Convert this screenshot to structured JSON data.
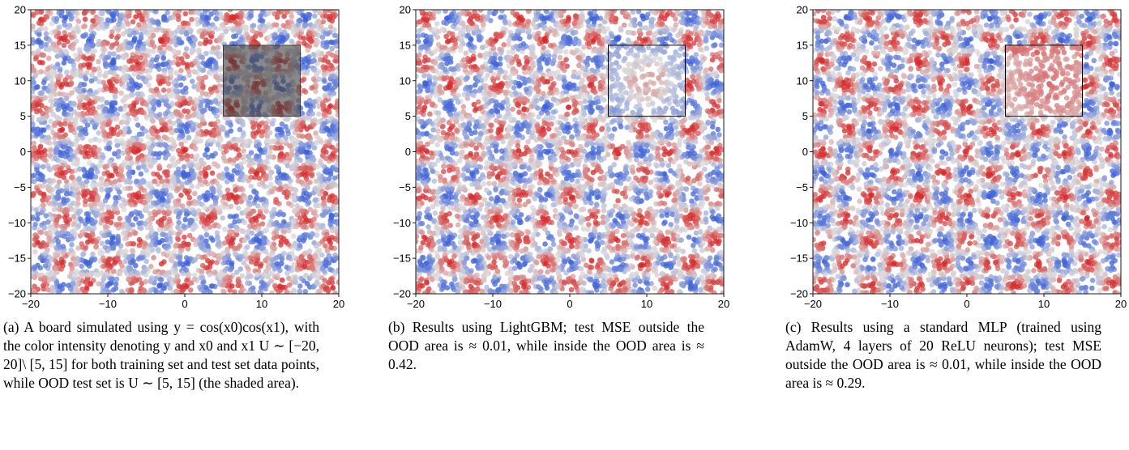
{
  "chart_data": [
    {
      "type": "scatter",
      "panel_id": "a",
      "title": "",
      "xlabel": "",
      "ylabel": "",
      "xlim": [
        -20,
        20
      ],
      "ylim": [
        -20,
        20
      ],
      "x_ticks": [
        "−20",
        "−10",
        "0",
        "10",
        "20"
      ],
      "y_ticks": [
        "20",
        "15",
        "10",
        "5",
        "0",
        "−5",
        "−10",
        "−15",
        "−20"
      ],
      "function": "cos(x0)cos(x1)",
      "ood_region": {
        "x0": [
          5,
          15
        ],
        "x1": [
          5,
          15
        ],
        "style": "shaded"
      },
      "ood_behavior": "true",
      "colormap": {
        "positive": "#d62728",
        "negative": "#3b5fd9",
        "neutral": "#dcdcdc"
      },
      "caption": {
        "label": "(a)",
        "text": "A board simulated using y = cos(x0)cos(x1), with the color intensity denoting y and x0 and x1 U ∼ [−20, 20]\\ [5, 15] for both training set and test set data points, while OOD test set is U ∼ [5, 15] (the shaded area)."
      }
    },
    {
      "type": "scatter",
      "panel_id": "b",
      "title": "",
      "xlabel": "",
      "ylabel": "",
      "xlim": [
        -20,
        20
      ],
      "ylim": [
        -20,
        20
      ],
      "x_ticks": [
        "−20",
        "−10",
        "0",
        "10",
        "20"
      ],
      "y_ticks": [
        "20",
        "15",
        "10",
        "5",
        "0",
        "−5",
        "−10",
        "−15",
        "−20"
      ],
      "function": "cos(x0)cos(x1)",
      "ood_region": {
        "x0": [
          5,
          15
        ],
        "x1": [
          5,
          15
        ],
        "style": "outline"
      },
      "ood_behavior": "blur",
      "colormap": {
        "positive": "#d62728",
        "negative": "#3b5fd9",
        "neutral": "#dcdcdc"
      },
      "caption": {
        "label": "(b)",
        "text": "Results using LightGBM; test MSE outside the OOD area is ≈ 0.01, while inside the OOD area is ≈ 0.42."
      }
    },
    {
      "type": "scatter",
      "panel_id": "c",
      "title": "",
      "xlabel": "",
      "ylabel": "",
      "xlim": [
        -20,
        20
      ],
      "ylim": [
        -20,
        20
      ],
      "x_ticks": [
        "−20",
        "−10",
        "0",
        "10",
        "20"
      ],
      "y_ticks": [
        "20",
        "15",
        "10",
        "5",
        "0",
        "−5",
        "−10",
        "−15",
        "−20"
      ],
      "function": "cos(x0)cos(x1)",
      "ood_region": {
        "x0": [
          5,
          15
        ],
        "x1": [
          5,
          15
        ],
        "style": "outline"
      },
      "ood_behavior": "smooth-red",
      "colormap": {
        "positive": "#d62728",
        "negative": "#3b5fd9",
        "neutral": "#dcdcdc"
      },
      "caption": {
        "label": "(c)",
        "text": "Results using a standard MLP (trained using AdamW, 4 layers of 20 ReLU neurons); test MSE outside the OOD area is ≈ 0.01, while inside the OOD area is ≈ 0.29."
      }
    }
  ]
}
